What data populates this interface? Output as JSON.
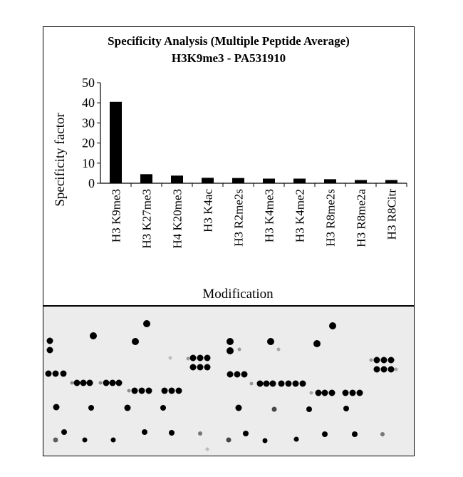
{
  "chart_data": {
    "type": "bar",
    "title": "Specificity Analysis  (Multiple Peptide Average)",
    "subtitle": "H3K9me3 - PA531910",
    "xlabel": "Modification",
    "ylabel": "Specificity factor",
    "ylim": [
      0,
      50
    ],
    "yticks": [
      0,
      10,
      20,
      30,
      40,
      50
    ],
    "categories": [
      "H3 K9me3",
      "H3 K27me3",
      "H4 K20me3",
      "H3 K4ac",
      "H3 R2me2s",
      "H3 K4me3",
      "H3 K4me2",
      "H3 R8me2s",
      "H3 R8me2a",
      "H3 R8Citr"
    ],
    "values": [
      40.5,
      4.5,
      3.8,
      2.7,
      2.6,
      2.3,
      2.3,
      2.0,
      1.6,
      1.6
    ],
    "bar_color": "#000000",
    "grid": false
  },
  "blot": {
    "background": "#ececec",
    "spot_color": "#000000"
  }
}
